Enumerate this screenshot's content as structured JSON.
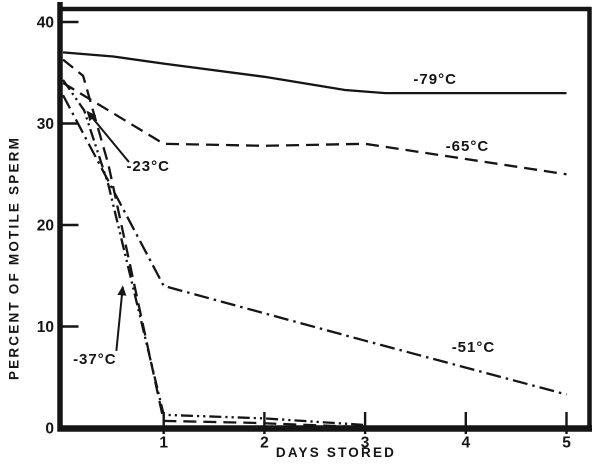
{
  "figure": {
    "background": "#ffffff",
    "ink": "#151515"
  },
  "chart_data": {
    "type": "line",
    "title": "",
    "xlabel": "DAYS STORED",
    "ylabel": "PERCENT OF MOTILE SPERM",
    "xlim": [
      0,
      5.25
    ],
    "ylim": [
      0,
      41
    ],
    "x_ticks": [
      1,
      2,
      3,
      4,
      5
    ],
    "y_ticks": [
      0,
      10,
      20,
      30,
      40
    ],
    "grid": false,
    "legend": "inline curve labels",
    "series": [
      {
        "name": "minus-79C",
        "temperature": "-79°C",
        "style": "solid",
        "points": [
          [
            0,
            37
          ],
          [
            0.5,
            36.6
          ],
          [
            1,
            35.9
          ],
          [
            2,
            34.6
          ],
          [
            2.8,
            33.3
          ],
          [
            3.2,
            33
          ],
          [
            4,
            33
          ],
          [
            5,
            33
          ]
        ],
        "label": {
          "text": "-79°C",
          "x": 3.48,
          "y": 33.9
        }
      },
      {
        "name": "minus-65C",
        "temperature": "-65°C",
        "style": "long-dash",
        "points": [
          [
            0,
            34
          ],
          [
            1,
            28
          ],
          [
            2,
            27.8
          ],
          [
            3,
            28
          ],
          [
            4,
            26.5
          ],
          [
            5,
            25
          ]
        ],
        "label": {
          "text": "-65°C",
          "x": 3.8,
          "y": 27.3
        }
      },
      {
        "name": "minus-51C",
        "temperature": "-51°C",
        "style": "dash-dot",
        "points": [
          [
            0,
            32.8
          ],
          [
            1,
            14
          ],
          [
            3,
            8.6
          ],
          [
            5,
            3.3
          ]
        ],
        "label": {
          "text": "-51°C",
          "x": 3.86,
          "y": 7.5
        }
      },
      {
        "name": "minus-37C",
        "temperature": "-37°C",
        "style": "long-dash",
        "points": [
          [
            0,
            36.3
          ],
          [
            0.2,
            34.7
          ],
          [
            0.45,
            26
          ],
          [
            1,
            0.7
          ],
          [
            1.9,
            0.5
          ],
          [
            2.9,
            0.12
          ]
        ],
        "label": {
          "text": "-37°C",
          "x": 0.1,
          "y": 6.3
        },
        "arrow": {
          "from": [
            0.53,
            7.6
          ],
          "to": [
            0.593,
            13.9
          ]
        }
      },
      {
        "name": "minus-23C",
        "temperature": "-23°C",
        "style": "dash-dot-dot",
        "points": [
          [
            0,
            34.3
          ],
          [
            0.21,
            31.3
          ],
          [
            0.45,
            24
          ],
          [
            1,
            1.3
          ],
          [
            2,
            0.95
          ],
          [
            3,
            0.3
          ]
        ],
        "label": {
          "text": "-23°C",
          "x": 0.63,
          "y": 25.3
        },
        "arrow": {
          "from": [
            0.655,
            26.2
          ],
          "to": [
            0.243,
            31.15
          ]
        }
      }
    ]
  }
}
